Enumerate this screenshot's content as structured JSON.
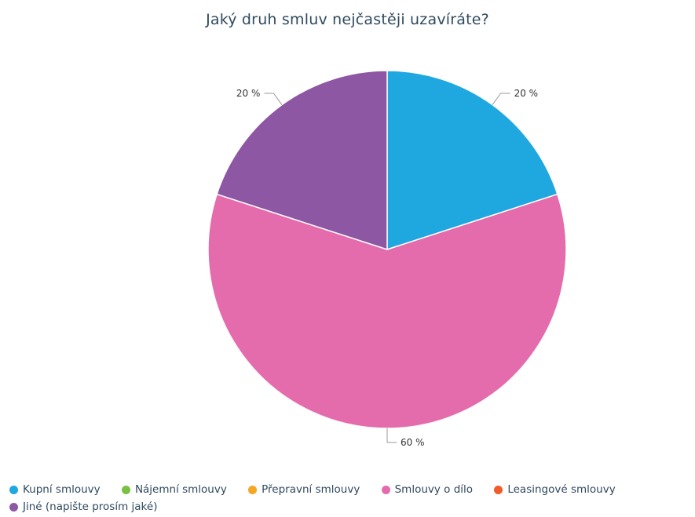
{
  "chart_data": {
    "type": "pie",
    "title": "Jaký druh smluv nejčastěji uzavíráte?",
    "series": [
      {
        "name": "Kupní smlouvy",
        "value": 20,
        "label": "20 %",
        "color": "#1fa8e0"
      },
      {
        "name": "Nájemní smlouvy",
        "value": 0,
        "label": "",
        "color": "#7ac143"
      },
      {
        "name": "Přepravní smlouvy",
        "value": 0,
        "label": "",
        "color": "#f5a623"
      },
      {
        "name": "Smlouvy o dílo",
        "value": 60,
        "label": "60 %",
        "color": "#e56cac"
      },
      {
        "name": "Leasingové smlouvy",
        "value": 0,
        "label": "",
        "color": "#f15a29"
      },
      {
        "name": "Jiné (napište prosím jaké)",
        "value": 20,
        "label": "20 %",
        "color": "#8e57a3"
      }
    ],
    "legend_position": "bottom"
  }
}
